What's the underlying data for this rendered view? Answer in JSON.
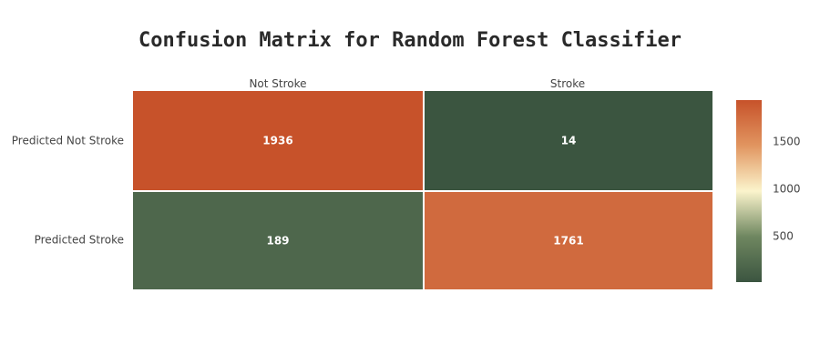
{
  "chart_data": {
    "type": "heatmap",
    "title": "Confusion Matrix for Random Forest Classifier",
    "x_categories": [
      "Not Stroke",
      "Stroke"
    ],
    "y_categories": [
      "Predicted Not Stroke",
      "Predicted Stroke"
    ],
    "z": [
      [
        1936,
        14
      ],
      [
        189,
        1761
      ]
    ],
    "colorscale": [
      [
        0.0,
        "#3b5540"
      ],
      [
        0.25,
        "#6f8760"
      ],
      [
        0.5,
        "#fbf4cc"
      ],
      [
        0.75,
        "#e19560"
      ],
      [
        1.0,
        "#c7522a"
      ]
    ],
    "zmin": 14,
    "zmax": 1936,
    "colorbar_ticks": [
      500,
      1000,
      1500
    ],
    "colorbar_tick_labels": [
      "500",
      "1000",
      "1500"
    ]
  }
}
